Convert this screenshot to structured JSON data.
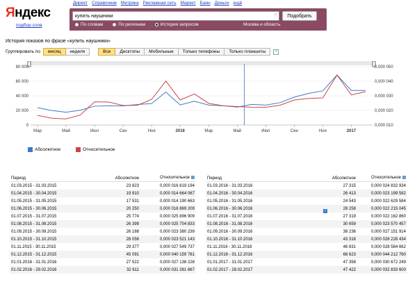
{
  "nav": [
    "Директ",
    "Справочник",
    "Метрика",
    "Рекламная сеть",
    "Маркет",
    "Баян",
    "Деньги",
    "ещё"
  ],
  "logo": {
    "first": "Я",
    "rest": "ндекс",
    "sub": "подбор слов"
  },
  "search": {
    "value": "купить наушники",
    "button": "Подобрать"
  },
  "radios": [
    {
      "label": "По словам",
      "checked": false
    },
    {
      "label": "По регионам",
      "checked": false
    },
    {
      "label": "История запросов",
      "checked": true
    }
  ],
  "region": "Москва и область",
  "page_title": "История показов по фразе «купить наушники»",
  "group": {
    "label": "Группировать по",
    "options": [
      "месяц",
      "неделя"
    ],
    "selected": "месяц"
  },
  "devices": {
    "options": [
      "Все",
      "Десктопы",
      "Мобильные",
      "Только телефоны",
      "Только планшеты"
    ],
    "selected": "Все"
  },
  "chart_data": {
    "type": "line",
    "x": [
      "2015-03",
      "2015-04",
      "2015-05",
      "2015-06",
      "2015-07",
      "2015-08",
      "2015-09",
      "2015-10",
      "2015-11",
      "2015-12",
      "2016-01",
      "2016-02",
      "2016-03",
      "2016-04",
      "2016-05",
      "2016-06",
      "2016-07",
      "2016-08",
      "2016-09",
      "2016-10",
      "2016-11",
      "2016-12",
      "2017-01",
      "2017-02"
    ],
    "x_tick_labels": [
      "Мар",
      "Май",
      "Июл",
      "Сен",
      "Ноя",
      "2016",
      "Мар",
      "Май",
      "Июл",
      "Сен",
      "Ноя",
      "2017"
    ],
    "y_left_ticks": [
      "0",
      "20 000",
      "40 000",
      "60 000",
      "80 000"
    ],
    "y_right_ticks": [
      "0,000 010",
      "0,000 020",
      "0,000 030",
      "0,000 040",
      "0,000 050"
    ],
    "ylim_left": [
      0,
      80000
    ],
    "ylim_right": [
      1e-05,
      5e-05
    ],
    "series": [
      {
        "name": "Абсолютное",
        "color": "#3a7bc8",
        "axis": "left",
        "values": [
          23823,
          19910,
          17531,
          20250,
          25774,
          26399,
          26188,
          28056,
          29377,
          45091,
          27522,
          32611,
          27315,
          26413,
          24543,
          28258,
          27319,
          30659,
          38236,
          43316,
          46831,
          68623,
          47358,
          47422
        ]
      },
      {
        "name": "Относительное",
        "color": "#cc4444",
        "axis": "right",
        "values": [
          1.6619e-05,
          1.4664e-05,
          1.419e-05,
          1.6869e-05,
          2.5897e-05,
          2.5705e-05,
          2.338e-05,
          2.3521e-05,
          2.755e-05,
          4.016e-05,
          2.7138e-05,
          3.1262e-05,
          2.4833e-05,
          2.32e-05,
          2.263e-05,
          2.2215e-05,
          2.2163e-05,
          2.3571e-05,
          2.7152e-05,
          2.8228e-05,
          2.8585e-05,
          4.4212e-05,
          3.0672e-05,
          3.2834e-05
        ]
      }
    ]
  },
  "table_headers": {
    "period": "Период",
    "absolute": "Абсолютное",
    "relative": "Относительное"
  },
  "table_left": [
    [
      "01.03.2015 - 31.03.2015",
      "23 823",
      "0,000 016 619 194"
    ],
    [
      "01.04.2015 - 30.04.2015",
      "19 910",
      "0,000 014 664 067"
    ],
    [
      "01.05.2015 - 31.05.2015",
      "17 531",
      "0,000 014 190 663"
    ],
    [
      "01.06.2015 - 30.06.2015",
      "20 250",
      "0,000 016 869 209"
    ],
    [
      "01.07.2015 - 31.07.2015",
      "25 774",
      "0,000 025 896 909"
    ],
    [
      "01.08.2015 - 31.08.2015",
      "26 399",
      "0,000 025 704 833"
    ],
    [
      "01.09.2015 - 30.09.2015",
      "26 188",
      "0,000 023 380 239"
    ],
    [
      "01.10.2015 - 31.10.2015",
      "28 056",
      "0,000 023 521 143"
    ],
    [
      "01.11.2015 - 30.11.2015",
      "29 377",
      "0,000 027 549 737"
    ],
    [
      "01.12.2015 - 31.12.2015",
      "45 091",
      "0,000 040 159 781"
    ],
    [
      "01.01.2016 - 31.01.2016",
      "27 522",
      "0,000 027 138 228"
    ],
    [
      "01.02.2016 - 29.02.2016",
      "32 611",
      "0,000 031 261 667"
    ]
  ],
  "table_right": [
    [
      "01.03.2016 - 31.03.2016",
      "27 315",
      "0,000 024 832 934"
    ],
    [
      "01.04.2016 - 30.04.2016",
      "26 413",
      "0,000 023 199 582"
    ],
    [
      "01.05.2016 - 31.05.2016",
      "24 543",
      "0,000 022 629 584"
    ],
    [
      "01.06.2016 - 30.06.2016",
      "28 258",
      "0,000 022 215 045"
    ],
    [
      "01.07.2016 - 31.07.2016",
      "27 319",
      "0,000 022 162 860"
    ],
    [
      "01.08.2016 - 31.08.2016",
      "30 659",
      "0,000 023 570 457"
    ],
    [
      "01.09.2016 - 30.09.2016",
      "38 236",
      "0,000 027 151 914"
    ],
    [
      "01.10.2016 - 31.10.2016",
      "43 316",
      "0,000 028 228 434"
    ],
    [
      "01.11.2016 - 30.11.2016",
      "46 831",
      "0,000 028 584 662"
    ],
    [
      "01.12.2016 - 31.12.2016",
      "68 623",
      "0,000 044 212 760"
    ],
    [
      "01.01.2017 - 31.01.2017",
      "47 358",
      "0,000 030 672 249"
    ],
    [
      "01.02.2017 - 28.02.2017",
      "47 422",
      "0,000 032 833 600"
    ]
  ],
  "colors": {
    "search_bg": "#8a4a63",
    "selected_btn": "#fde089",
    "absolute": "#3a7bc8",
    "relative": "#cc4444"
  }
}
